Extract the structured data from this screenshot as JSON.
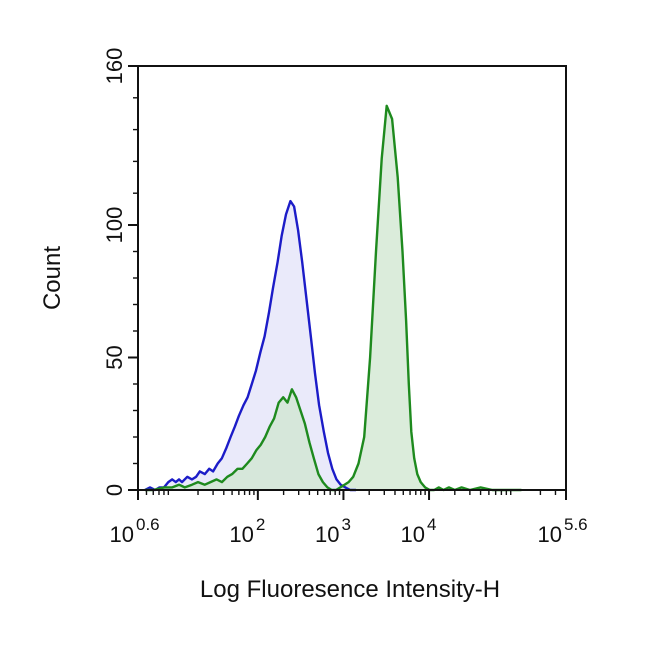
{
  "chart_data": {
    "type": "area",
    "title": "",
    "xlabel": "Log Fluoresence Intensity-H",
    "ylabel": "Count",
    "xscale": "log",
    "xlim": [
      3.98,
      398107
    ],
    "ylim": [
      0,
      160
    ],
    "grid": false,
    "legend": "none",
    "x_ticks": [
      {
        "value": 3.98,
        "base": "10",
        "exp": "0.6"
      },
      {
        "value": 100,
        "base": "10",
        "exp": "2"
      },
      {
        "value": 1000,
        "base": "10",
        "exp": "3"
      },
      {
        "value": 10000,
        "base": "10",
        "exp": "4"
      },
      {
        "value": 398107,
        "base": "10",
        "exp": "5.6"
      }
    ],
    "y_ticks": [
      0,
      50,
      100,
      160
    ],
    "series": [
      {
        "color": "#1c1cc8",
        "fill": "#e3e3f8",
        "x": [
          4.8,
          5.5,
          6.3,
          7.1,
          8,
          9,
          10,
          11,
          12,
          13,
          15,
          17,
          19,
          21,
          24,
          27,
          30,
          34,
          38,
          43,
          48,
          54,
          60,
          68,
          76,
          85,
          95,
          107,
          120,
          135,
          150,
          170,
          190,
          213,
          240,
          265,
          295,
          330,
          370,
          415,
          465,
          520,
          590,
          660,
          740,
          830,
          930,
          1050,
          1200,
          1400
        ],
        "y": [
          0,
          1,
          0,
          1,
          1,
          3,
          4,
          3,
          4,
          3,
          5,
          4,
          5,
          7,
          6,
          8,
          7,
          10,
          12,
          16,
          20,
          24,
          28,
          32,
          35,
          40,
          45,
          52,
          58,
          67,
          76,
          86,
          96,
          104,
          109,
          107,
          98,
          86,
          72,
          58,
          44,
          32,
          22,
          14,
          8,
          4,
          2,
          1,
          0,
          0
        ]
      },
      {
        "color": "#1e8a1e",
        "fill": "#cfe5cf",
        "x": [
          4.8,
          6,
          8,
          10,
          12,
          14,
          17,
          20,
          24,
          28,
          33,
          38,
          44,
          50,
          58,
          66,
          75,
          85,
          96,
          108,
          122,
          138,
          155,
          175,
          198,
          222,
          250,
          280,
          315,
          355,
          400,
          450,
          510,
          575,
          650,
          730,
          820,
          920,
          1030,
          1150,
          1300,
          1500,
          1750,
          2050,
          2400,
          2800,
          3200,
          3700,
          4300,
          4900,
          5400,
          5800,
          6200,
          6700,
          7300,
          8000,
          9000,
          10200,
          11500,
          13000,
          14800,
          17000,
          20000,
          24000,
          30000,
          40000,
          55000,
          80000,
          120000
        ],
        "y": [
          0,
          0,
          1,
          1,
          2,
          1,
          2,
          3,
          2,
          3,
          4,
          3,
          5,
          6,
          8,
          8,
          10,
          12,
          15,
          17,
          20,
          24,
          27,
          33,
          35,
          33,
          38,
          35,
          30,
          25,
          18,
          12,
          6,
          3,
          1,
          0,
          0,
          1,
          2,
          3,
          5,
          10,
          20,
          50,
          90,
          125,
          145,
          140,
          118,
          90,
          64,
          40,
          22,
          12,
          6,
          3,
          1,
          0,
          0,
          1,
          0,
          1,
          0,
          1,
          0,
          1,
          0,
          0,
          0
        ]
      }
    ]
  }
}
